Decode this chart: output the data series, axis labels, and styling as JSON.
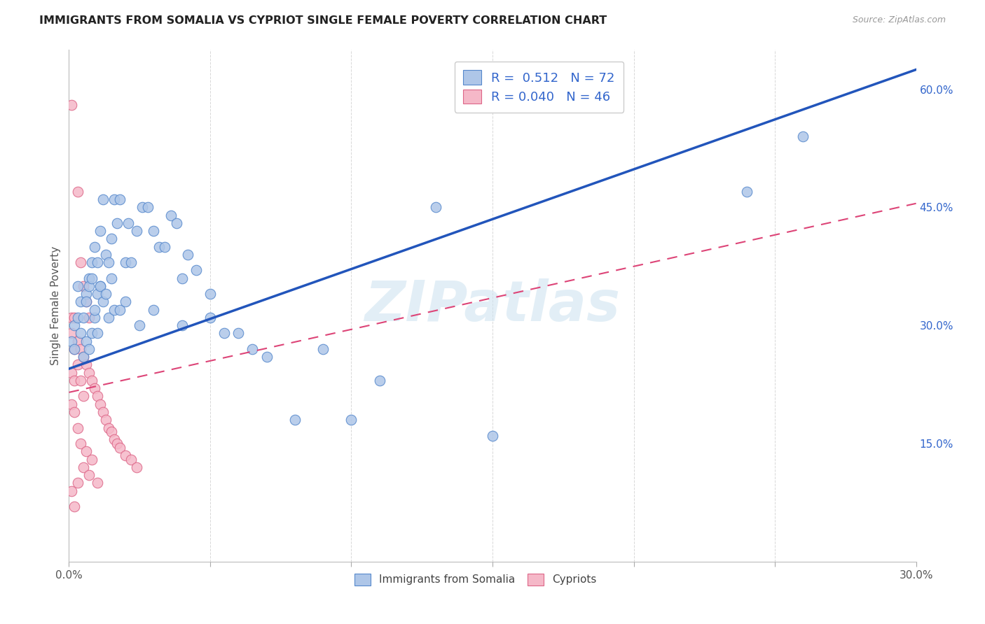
{
  "title": "IMMIGRANTS FROM SOMALIA VS CYPRIOT SINGLE FEMALE POVERTY CORRELATION CHART",
  "source": "Source: ZipAtlas.com",
  "ylabel": "Single Female Poverty",
  "xlim": [
    0.0,
    0.3
  ],
  "ylim": [
    0.0,
    0.65
  ],
  "xtick_positions": [
    0.0,
    0.05,
    0.1,
    0.15,
    0.2,
    0.25,
    0.3
  ],
  "xtick_labels": [
    "0.0%",
    "",
    "",
    "",
    "",
    "",
    "30.0%"
  ],
  "ytick_right_positions": [
    0.15,
    0.3,
    0.45,
    0.6
  ],
  "ytick_right_labels": [
    "15.0%",
    "30.0%",
    "45.0%",
    "60.0%"
  ],
  "background_color": "#ffffff",
  "grid_color": "#d8d8d8",
  "somalia_face_color": "#aec6e8",
  "somalia_edge_color": "#5588cc",
  "cypriot_face_color": "#f5b8c8",
  "cypriot_edge_color": "#dd6688",
  "somalia_line_color": "#2255bb",
  "cypriot_line_color": "#dd4477",
  "R_somalia": 0.512,
  "N_somalia": 72,
  "R_cypriot": 0.04,
  "N_cypriot": 46,
  "legend_color": "#3366cc",
  "watermark": "ZIPatlas",
  "somalia_line_x": [
    0.0,
    0.3
  ],
  "somalia_line_y": [
    0.245,
    0.625
  ],
  "cypriot_line_x": [
    0.0,
    0.3
  ],
  "cypriot_line_y": [
    0.215,
    0.455
  ],
  "somalia_x": [
    0.001,
    0.002,
    0.002,
    0.003,
    0.003,
    0.004,
    0.004,
    0.005,
    0.005,
    0.006,
    0.006,
    0.007,
    0.007,
    0.008,
    0.008,
    0.009,
    0.009,
    0.01,
    0.01,
    0.011,
    0.011,
    0.012,
    0.013,
    0.014,
    0.015,
    0.016,
    0.017,
    0.018,
    0.02,
    0.021,
    0.022,
    0.024,
    0.026,
    0.028,
    0.03,
    0.032,
    0.034,
    0.036,
    0.038,
    0.04,
    0.042,
    0.045,
    0.05,
    0.055,
    0.06,
    0.065,
    0.07,
    0.08,
    0.09,
    0.1,
    0.11,
    0.13,
    0.15,
    0.006,
    0.007,
    0.008,
    0.009,
    0.01,
    0.011,
    0.012,
    0.013,
    0.014,
    0.015,
    0.016,
    0.018,
    0.02,
    0.025,
    0.03,
    0.04,
    0.05,
    0.24,
    0.26
  ],
  "somalia_y": [
    0.28,
    0.27,
    0.3,
    0.31,
    0.35,
    0.29,
    0.33,
    0.26,
    0.31,
    0.28,
    0.34,
    0.27,
    0.36,
    0.29,
    0.38,
    0.31,
    0.4,
    0.29,
    0.38,
    0.35,
    0.42,
    0.46,
    0.39,
    0.38,
    0.41,
    0.46,
    0.43,
    0.46,
    0.38,
    0.43,
    0.38,
    0.42,
    0.45,
    0.45,
    0.42,
    0.4,
    0.4,
    0.44,
    0.43,
    0.36,
    0.39,
    0.37,
    0.31,
    0.29,
    0.29,
    0.27,
    0.26,
    0.18,
    0.27,
    0.18,
    0.23,
    0.45,
    0.16,
    0.33,
    0.35,
    0.36,
    0.32,
    0.34,
    0.35,
    0.33,
    0.34,
    0.31,
    0.36,
    0.32,
    0.32,
    0.33,
    0.3,
    0.32,
    0.3,
    0.34,
    0.47,
    0.54
  ],
  "cypriot_x": [
    0.001,
    0.001,
    0.001,
    0.001,
    0.001,
    0.001,
    0.002,
    0.002,
    0.002,
    0.002,
    0.002,
    0.003,
    0.003,
    0.003,
    0.003,
    0.004,
    0.004,
    0.004,
    0.005,
    0.005,
    0.005,
    0.006,
    0.006,
    0.007,
    0.007,
    0.008,
    0.008,
    0.009,
    0.01,
    0.01,
    0.011,
    0.012,
    0.013,
    0.014,
    0.015,
    0.016,
    0.017,
    0.018,
    0.02,
    0.022,
    0.024,
    0.003,
    0.004,
    0.005,
    0.006,
    0.007
  ],
  "cypriot_y": [
    0.58,
    0.31,
    0.29,
    0.24,
    0.2,
    0.09,
    0.31,
    0.27,
    0.23,
    0.19,
    0.07,
    0.28,
    0.25,
    0.17,
    0.1,
    0.27,
    0.23,
    0.15,
    0.26,
    0.21,
    0.12,
    0.25,
    0.14,
    0.24,
    0.11,
    0.23,
    0.13,
    0.22,
    0.21,
    0.1,
    0.2,
    0.19,
    0.18,
    0.17,
    0.165,
    0.155,
    0.15,
    0.145,
    0.135,
    0.13,
    0.12,
    0.47,
    0.38,
    0.35,
    0.33,
    0.31
  ]
}
